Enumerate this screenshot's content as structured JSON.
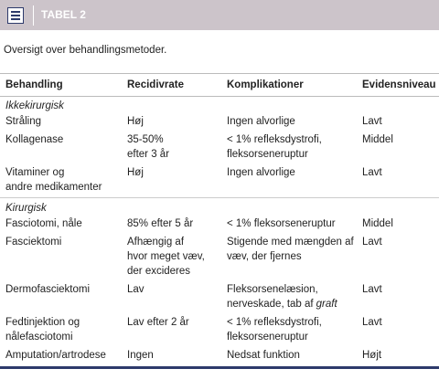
{
  "header": {
    "title": "TABEL 2"
  },
  "caption": "Oversigt over behandlingsmetoder.",
  "table": {
    "columns": [
      "Behandling",
      "Recidivrate",
      "Komplikationer",
      "Evidensniveau"
    ],
    "sections": [
      {
        "label": "Ikkekirurgisk",
        "rows": [
          [
            [
              "Stråling"
            ],
            [
              "Høj"
            ],
            [
              "Ingen alvorlige"
            ],
            [
              "Lavt"
            ]
          ],
          [
            [
              "Kollagenase"
            ],
            [
              "35-50%",
              "efter 3 år"
            ],
            [
              "< 1% refleksdystrofi,",
              "fleksorseneruptur"
            ],
            [
              "Middel"
            ]
          ],
          [
            [
              "Vitaminer og",
              "andre medikamenter"
            ],
            [
              "Høj"
            ],
            [
              "Ingen alvorlige"
            ],
            [
              "Lavt"
            ]
          ]
        ]
      },
      {
        "label": "Kirurgisk",
        "rows": [
          [
            [
              "Fasciotomi, nåle"
            ],
            [
              "85% efter 5 år"
            ],
            [
              "< 1% fleksorseneruptur"
            ],
            [
              "Middel"
            ]
          ],
          [
            [
              "Fasciektomi"
            ],
            [
              "Afhængig af",
              "hvor meget væv,",
              "der excideres"
            ],
            [
              "Stigende med mængden af",
              "væv, der fjernes"
            ],
            [
              "Lavt"
            ]
          ],
          [
            [
              "Dermofasciektomi"
            ],
            [
              "Lav"
            ],
            [
              "Fleksorsenelæsion,",
              "nerveskade, tab af"
            ],
            [
              "Lavt"
            ]
          ],
          [
            [
              "Fedtinjektion og",
              "nålefasciotomi"
            ],
            [
              "Lav efter 2 år"
            ],
            [
              "< 1% refleksdystrofi,",
              "fleksorseneruptur"
            ],
            [
              "Lavt"
            ]
          ],
          [
            [
              "Amputation/artrodese"
            ],
            [
              "Ingen"
            ],
            [
              "Nedsat funktion"
            ],
            [
              "Højt"
            ]
          ]
        ]
      }
    ],
    "emphasis": {
      "row": "sections.1.rows.2.2",
      "text": "graft"
    }
  }
}
